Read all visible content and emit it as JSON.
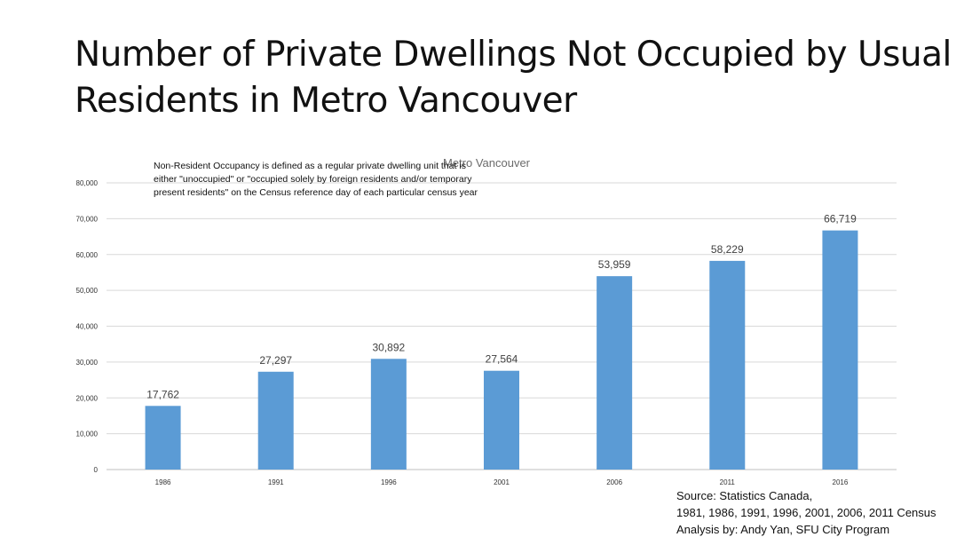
{
  "slide": {
    "title": "Number of Private Dwellings Not Occupied by Usual Residents in Metro Vancouver",
    "source_lines": [
      "Source: Statistics Canada,",
      "1981, 1986, 1991, 1996, 2001, 2006, 2011 Census",
      "Analysis by: Andy Yan, SFU City Program"
    ]
  },
  "colors": {
    "bar": "#5b9bd5",
    "gridline": "#d9d9d9",
    "axis": "#bfbfbf"
  },
  "chart_data": {
    "type": "bar",
    "title": "Metro Vancouver",
    "note_lines": [
      "Non-Resident Occupancy is defined as a regular private dwelling unit that is",
      "either \"unoccupied\" or \"occupied solely by foreign residents and/or temporary",
      "present residents\" on the Census reference day of each particular census year"
    ],
    "categories": [
      "1986",
      "1991",
      "1996",
      "2001",
      "2006",
      "2011",
      "2016"
    ],
    "values": [
      17762,
      27297,
      30892,
      27564,
      53959,
      58229,
      66719
    ],
    "value_labels": [
      "17,762",
      "27,297",
      "30,892",
      "27,564",
      "53,959",
      "58,229",
      "66,719"
    ],
    "ylim": [
      0,
      80000
    ],
    "yticks": [
      0,
      10000,
      20000,
      30000,
      40000,
      50000,
      60000,
      70000,
      80000
    ],
    "ytick_labels": [
      "0",
      "10,000",
      "20,000",
      "30,000",
      "40,000",
      "50,000",
      "60,000",
      "70,000",
      "80,000"
    ],
    "xlabel": "",
    "ylabel": "",
    "grid": true,
    "legend": false
  }
}
